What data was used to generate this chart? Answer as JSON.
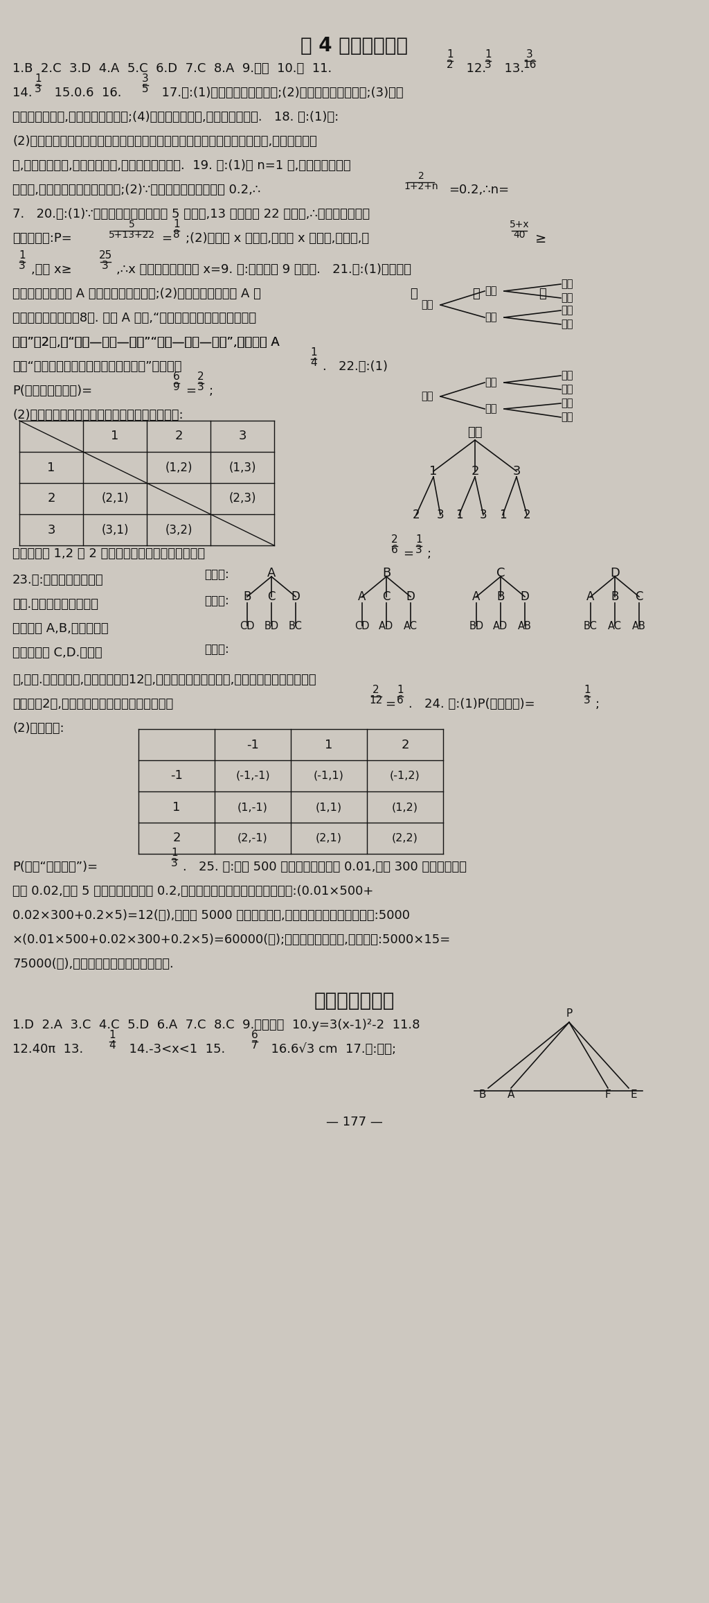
{
  "bg_color": "#cdc8c0",
  "title1": "第 4 章达标测试题",
  "title2": "期末达标测试题",
  "page_number": "— 177 —"
}
